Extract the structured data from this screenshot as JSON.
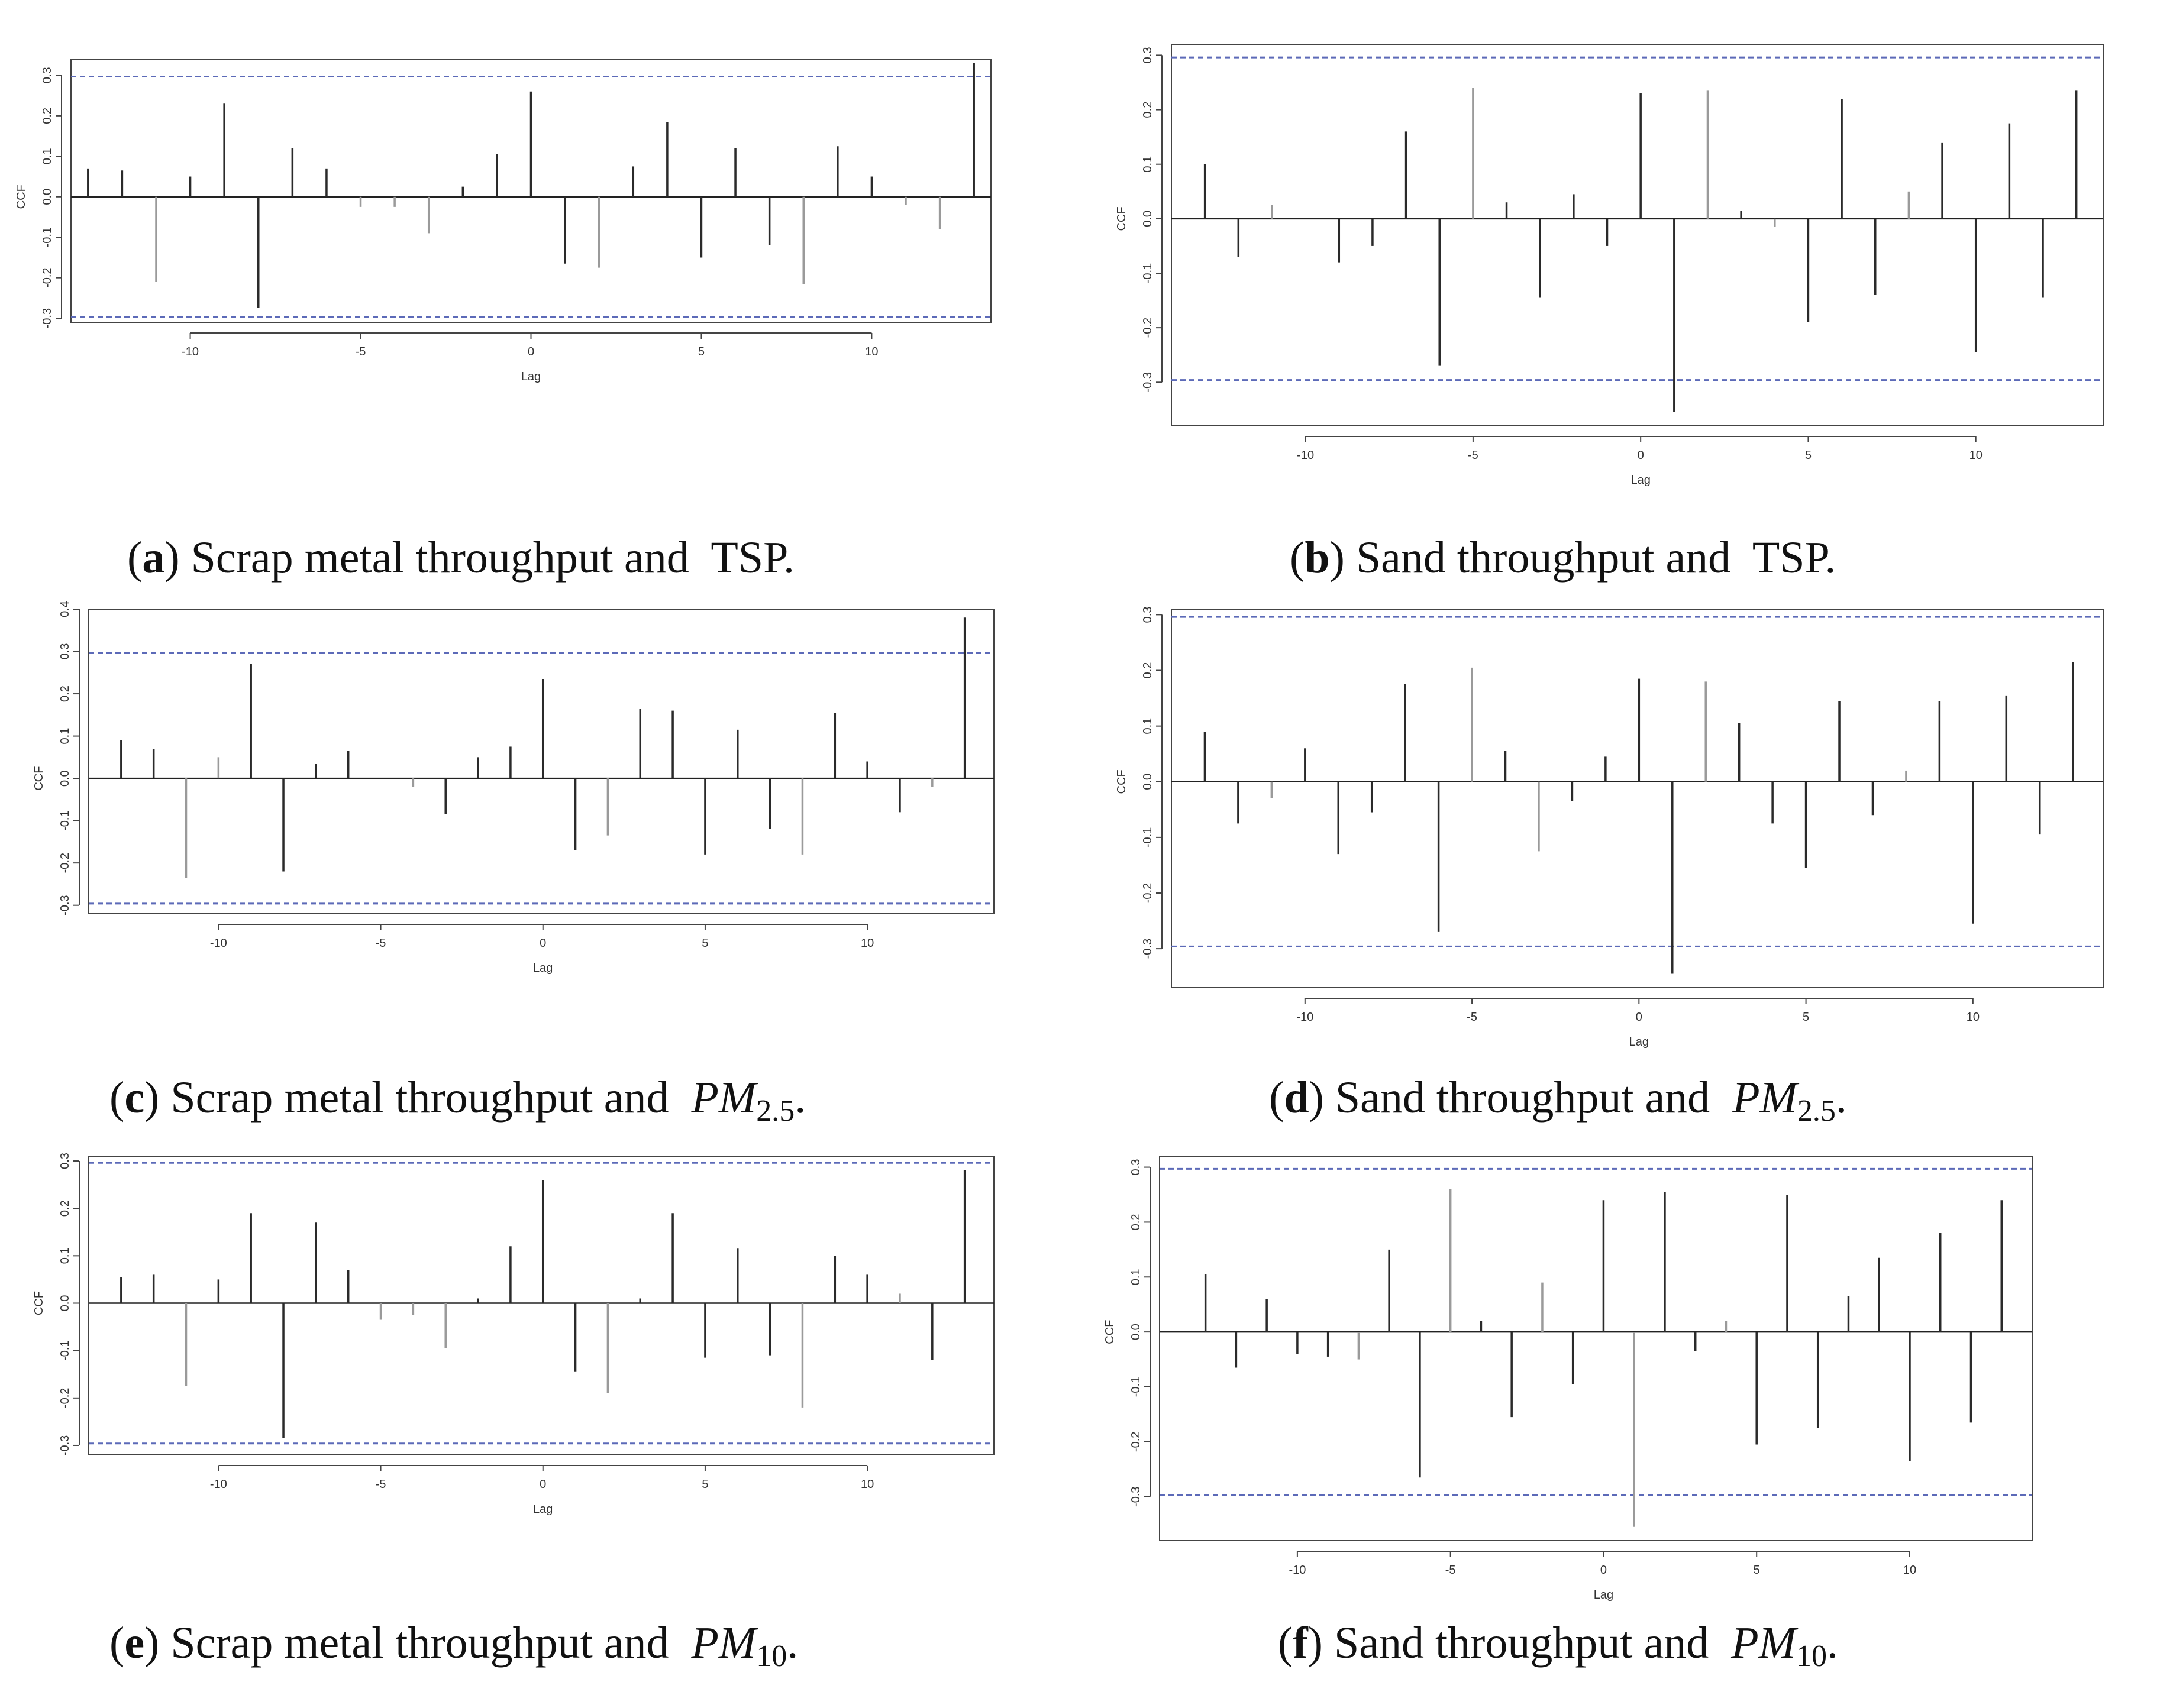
{
  "colors": {
    "conf_line": "#5c6ab8",
    "spike_dark": "#2a2a2a",
    "spike_light": "#9a9a9a",
    "zero_line": "#222222"
  },
  "captions": [
    {
      "letter": "a",
      "text": "Scrap metal throughput and",
      "var": "TSP",
      "sub": "",
      "end": "."
    },
    {
      "letter": "b",
      "text": "Sand throughput and",
      "var": "TSP",
      "sub": "",
      "end": "."
    },
    {
      "letter": "c",
      "text": "Scrap metal throughput and",
      "var": "PM",
      "sub": "2.5",
      "end": "."
    },
    {
      "letter": "d",
      "text": "Sand throughput and",
      "var": "PM",
      "sub": "2.5",
      "end": "."
    },
    {
      "letter": "e",
      "text": "Scrap metal throughput and",
      "var": "PM",
      "sub": "10",
      "end": "."
    },
    {
      "letter": "f",
      "text": "Sand throughput and",
      "var": "PM",
      "sub": "10",
      "end": "."
    }
  ],
  "chart_data": [
    {
      "type": "bar",
      "id": "a",
      "title": "Scrap metal throughput and TSP",
      "xlabel": "Lag",
      "ylabel": "CCF",
      "xlim": [
        -13.5,
        13.5
      ],
      "ylim": [
        -0.31,
        0.34
      ],
      "yticks": [
        "0.3",
        "0.2",
        "0.1",
        "0.0",
        "-0.1",
        "-0.2",
        "-0.3"
      ],
      "xticks": [
        "-10",
        "-5",
        "0",
        "5",
        "10"
      ],
      "confidence": 0.297,
      "lags": [
        -13,
        -12,
        -11,
        -10,
        -9,
        -8,
        -7,
        -6,
        -5,
        -4,
        -3,
        -2,
        -1,
        0,
        1,
        2,
        3,
        4,
        5,
        6,
        7,
        8,
        9,
        10,
        11,
        12,
        13
      ],
      "values": [
        0.07,
        0.065,
        -0.21,
        0.05,
        0.23,
        -0.275,
        0.12,
        0.07,
        -0.025,
        -0.025,
        -0.09,
        0.025,
        0.105,
        0.26,
        -0.165,
        -0.175,
        0.075,
        0.185,
        -0.15,
        0.12,
        -0.12,
        -0.215,
        0.125,
        0.05,
        -0.02,
        -0.08,
        0.33
      ]
    },
    {
      "type": "bar",
      "id": "b",
      "title": "Sand throughput and TSP",
      "xlabel": "Lag",
      "ylabel": "CCF",
      "xlim": [
        -14,
        13.8
      ],
      "ylim": [
        -0.38,
        0.32
      ],
      "yticks": [
        "0.3",
        "0.2",
        "0.1",
        "0.0",
        "-0.1",
        "-0.2",
        "-0.3"
      ],
      "xticks": [
        "-10",
        "-5",
        "0",
        "5",
        "10"
      ],
      "confidence": 0.296,
      "lags": [
        -13,
        -12,
        -11,
        -10,
        -9,
        -8,
        -7,
        -6,
        -5,
        -4,
        -3,
        -2,
        -1,
        0,
        1,
        2,
        3,
        4,
        5,
        6,
        7,
        8,
        9,
        10,
        11,
        12,
        13
      ],
      "values": [
        0.1,
        -0.07,
        0.025,
        0,
        -0.08,
        -0.05,
        0.16,
        -0.27,
        0.24,
        0.03,
        -0.145,
        0.045,
        -0.05,
        0.23,
        -0.355,
        0.235,
        0.015,
        -0.015,
        -0.19,
        0.22,
        -0.14,
        0.05,
        0.14,
        -0.245,
        0.175,
        -0.145,
        0.235
      ]
    },
    {
      "type": "bar",
      "id": "c",
      "title": "Scrap metal throughput and PM2.5",
      "xlabel": "Lag",
      "ylabel": "CCF",
      "xlim": [
        -14,
        13.9
      ],
      "ylim": [
        -0.32,
        0.4
      ],
      "yticks": [
        "0.4",
        "0.3",
        "0.2",
        "0.1",
        "0.0",
        "-0.1",
        "-0.2",
        "-0.3"
      ],
      "xticks": [
        "-10",
        "-5",
        "0",
        "5",
        "10"
      ],
      "confidence": 0.296,
      "lags": [
        -13,
        -12,
        -11,
        -10,
        -9,
        -8,
        -7,
        -6,
        -5,
        -4,
        -3,
        -2,
        -1,
        0,
        1,
        2,
        3,
        4,
        5,
        6,
        7,
        8,
        9,
        10,
        11,
        12,
        13
      ],
      "values": [
        0.09,
        0.07,
        -0.235,
        0.05,
        0.27,
        -0.22,
        0.035,
        0.065,
        0,
        -0.02,
        -0.085,
        0.05,
        0.075,
        0.235,
        -0.17,
        -0.135,
        0.165,
        0.16,
        -0.18,
        0.115,
        -0.12,
        -0.18,
        0.155,
        0.04,
        -0.08,
        -0.02,
        0.38
      ]
    },
    {
      "type": "bar",
      "id": "d",
      "title": "Sand throughput and PM2.5",
      "xlabel": "Lag",
      "ylabel": "CCF",
      "xlim": [
        -14,
        13.9
      ],
      "ylim": [
        -0.37,
        0.31
      ],
      "yticks": [
        "0.3",
        "0.2",
        "0.1",
        "0.0",
        "-0.1",
        "-0.2",
        "-0.3"
      ],
      "xticks": [
        "-10",
        "-5",
        "0",
        "5",
        "10"
      ],
      "confidence": 0.296,
      "lags": [
        -13,
        -12,
        -11,
        -10,
        -9,
        -8,
        -7,
        -6,
        -5,
        -4,
        -3,
        -2,
        -1,
        0,
        1,
        2,
        3,
        4,
        5,
        6,
        7,
        8,
        9,
        10,
        11,
        12,
        13
      ],
      "values": [
        0.09,
        -0.075,
        -0.03,
        0.06,
        -0.13,
        -0.055,
        0.175,
        -0.27,
        0.205,
        0.055,
        -0.125,
        -0.035,
        0.045,
        0.185,
        -0.345,
        0.18,
        0.105,
        -0.075,
        -0.155,
        0.145,
        -0.06,
        0.02,
        0.145,
        -0.255,
        0.155,
        -0.095,
        0.215
      ]
    },
    {
      "type": "bar",
      "id": "e",
      "title": "Scrap metal throughput and PM10",
      "xlabel": "Lag",
      "ylabel": "CCF",
      "xlim": [
        -14,
        13.9
      ],
      "ylim": [
        -0.32,
        0.31
      ],
      "yticks": [
        "0.3",
        "0.2",
        "0.1",
        "0.0",
        "-0.1",
        "-0.2",
        "-0.3"
      ],
      "xticks": [
        "-10",
        "-5",
        "0",
        "5",
        "10"
      ],
      "confidence": 0.296,
      "lags": [
        -13,
        -12,
        -11,
        -10,
        -9,
        -8,
        -7,
        -6,
        -5,
        -4,
        -3,
        -2,
        -1,
        0,
        1,
        2,
        3,
        4,
        5,
        6,
        7,
        8,
        9,
        10,
        11,
        12,
        13
      ],
      "values": [
        0.055,
        0.06,
        -0.175,
        0.05,
        0.19,
        -0.285,
        0.17,
        0.07,
        -0.035,
        -0.025,
        -0.095,
        0.01,
        0.12,
        0.26,
        -0.145,
        -0.19,
        0.01,
        0.19,
        -0.115,
        0.115,
        -0.11,
        -0.22,
        0.1,
        0.06,
        0.02,
        -0.12,
        0.28
      ]
    },
    {
      "type": "bar",
      "id": "f",
      "title": "Sand throughput and PM10",
      "xlabel": "Lag",
      "ylabel": "CCF",
      "xlim": [
        -14.5,
        14
      ],
      "ylim": [
        -0.38,
        0.32
      ],
      "yticks": [
        "0.3",
        "0.2",
        "0.1",
        "0.0",
        "-0.1",
        "-0.2",
        "-0.3"
      ],
      "xticks": [
        "-10",
        "-5",
        "0",
        "5",
        "10"
      ],
      "confidence": 0.297,
      "lags": [
        -13,
        -12,
        -11,
        -10,
        -9,
        -8,
        -7,
        -6,
        -5,
        -4,
        -3,
        -2,
        -1,
        0,
        1,
        2,
        3,
        4,
        5,
        6,
        7,
        8,
        9,
        10,
        11,
        12,
        13
      ],
      "values": [
        0.105,
        -0.065,
        0.06,
        -0.04,
        -0.045,
        -0.05,
        0.15,
        -0.265,
        0.26,
        0.02,
        -0.155,
        0.09,
        -0.095,
        0.24,
        -0.355,
        0.255,
        -0.035,
        0.02,
        -0.205,
        0.25,
        -0.175,
        0.065,
        0.135,
        -0.235,
        0.18,
        -0.165,
        0.24
      ]
    }
  ]
}
